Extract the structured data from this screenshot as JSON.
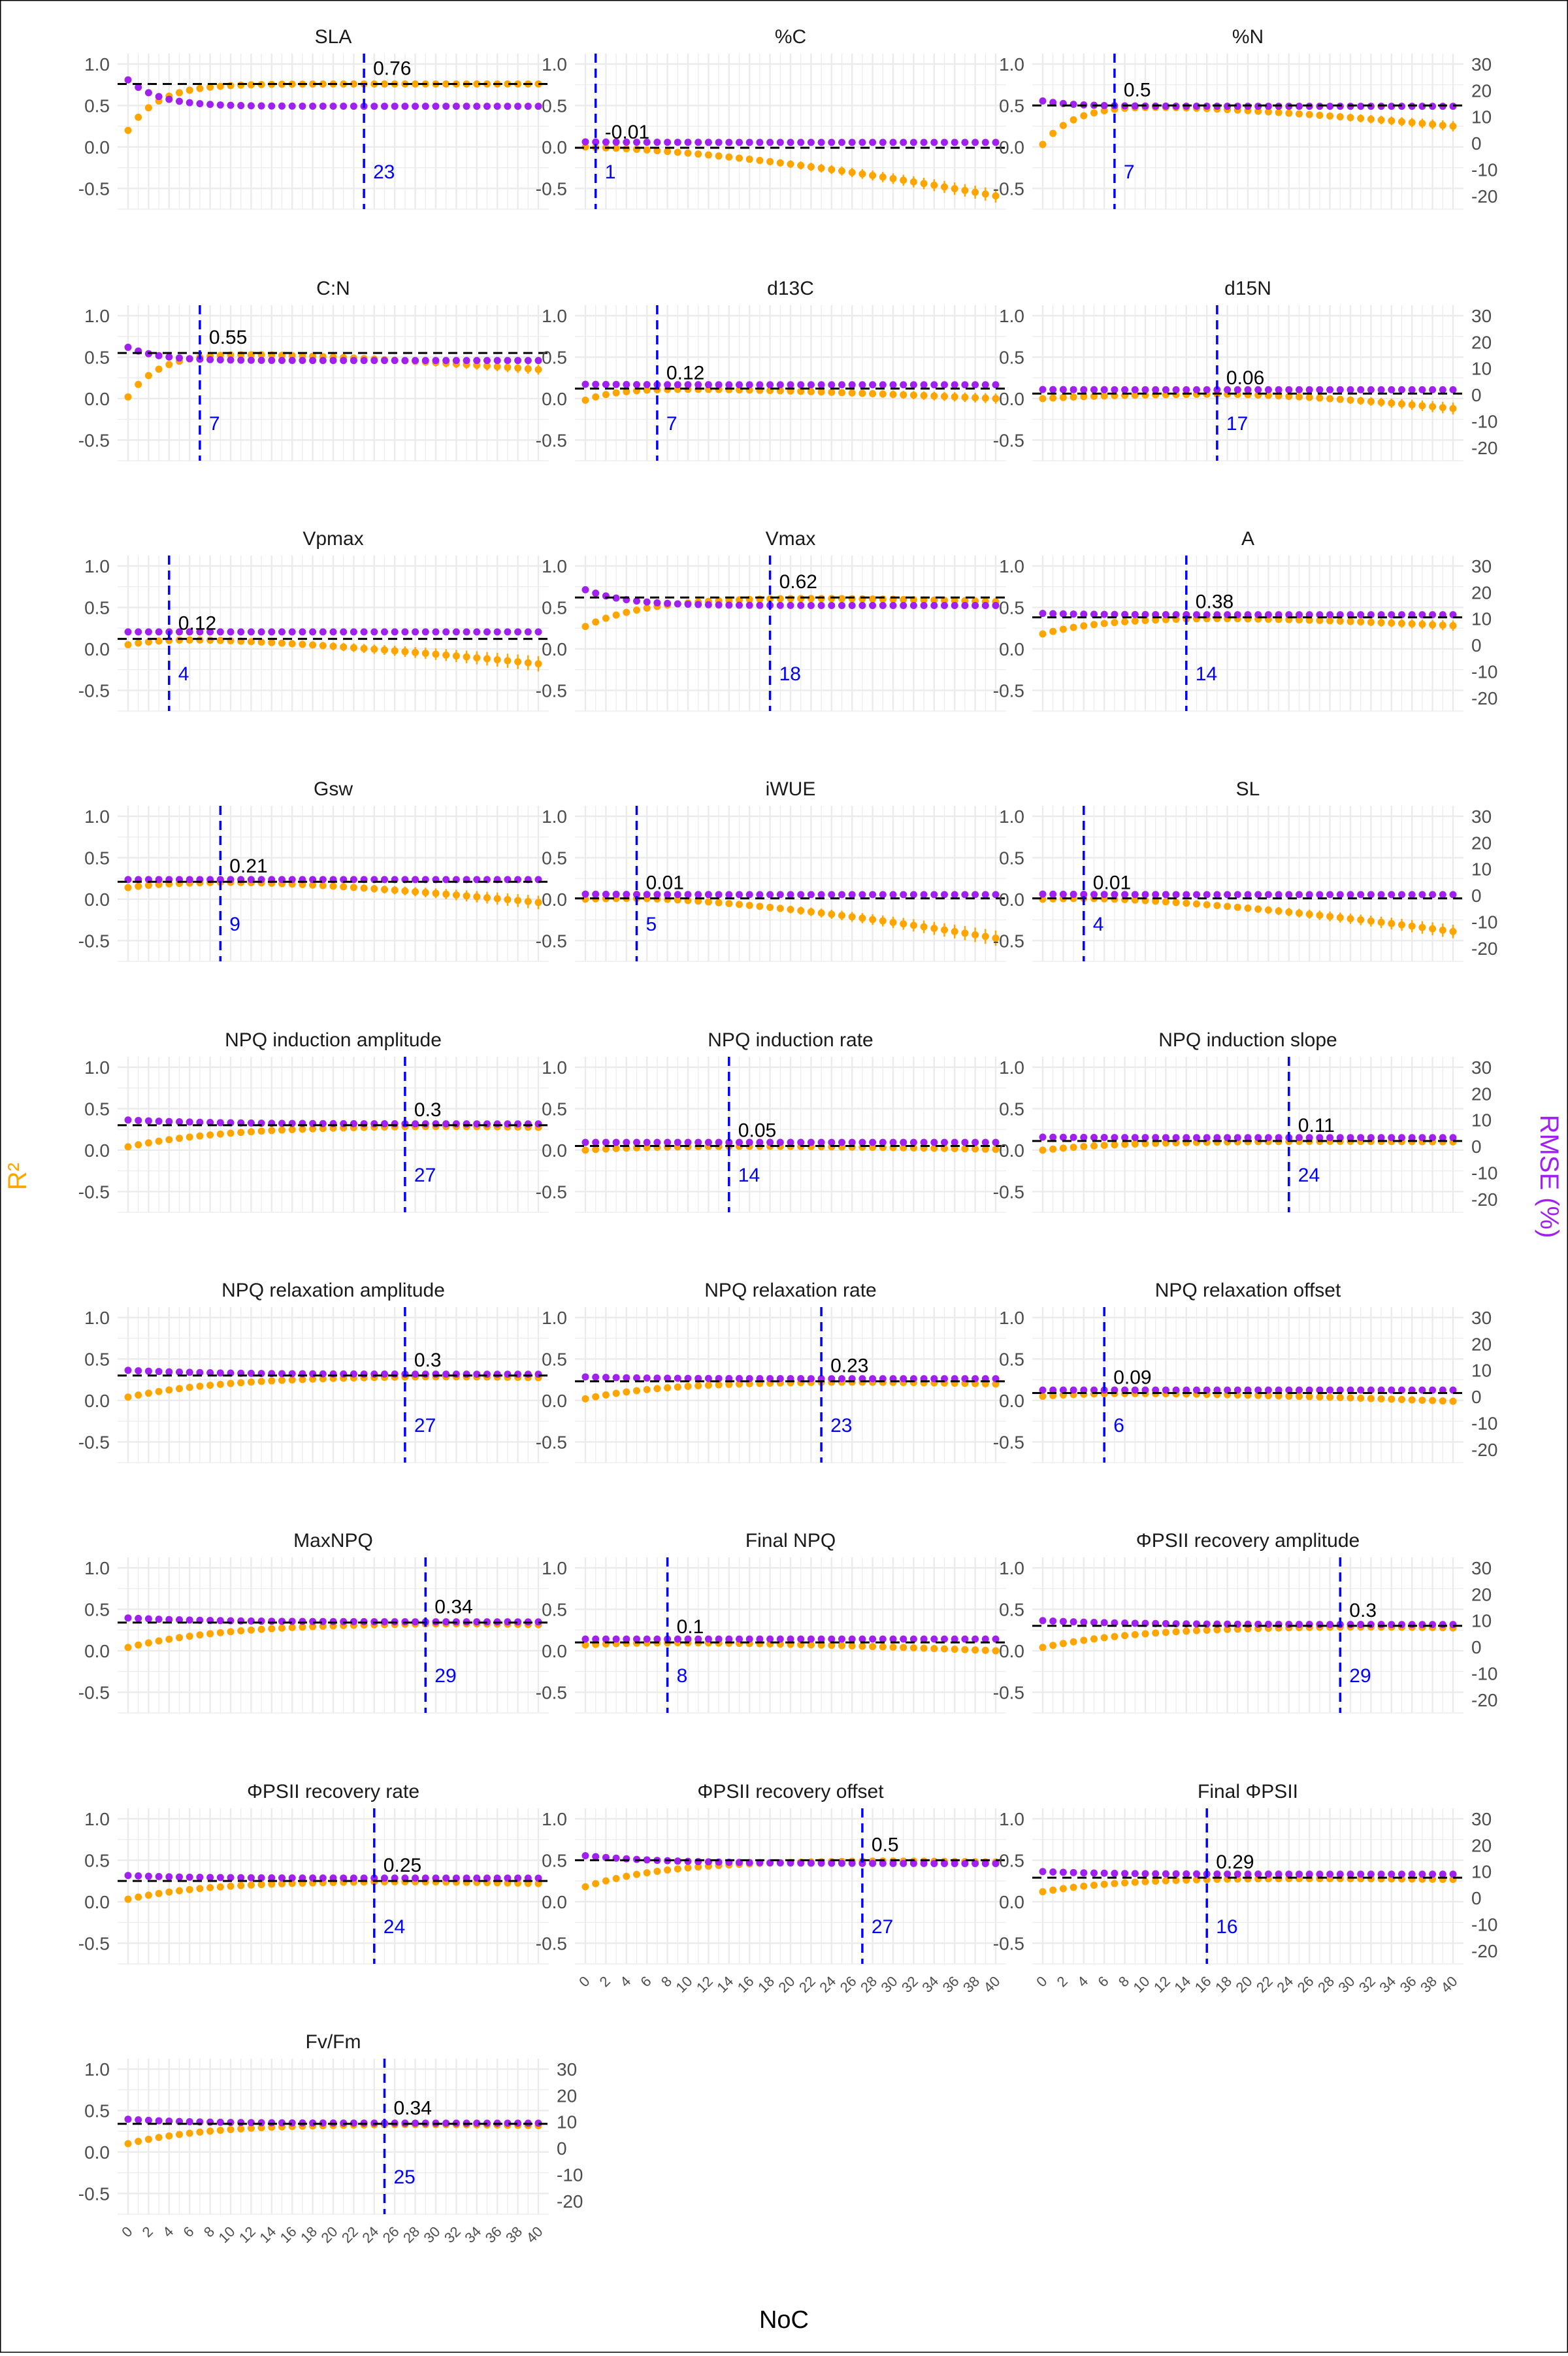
{
  "figure": {
    "xlabel": "NoC",
    "ylabel_left": "R²",
    "ylabel_right": "RMSE (%)",
    "colors": {
      "r2": "#FFA500",
      "rmse": "#A020F0",
      "vline": "#0000FF",
      "hline": "#000000",
      "grid": "#EBEBEB",
      "text": "#1A1A1A",
      "axis_text": "#4D4D4D"
    }
  },
  "chart_data": [
    {
      "type": "scatter",
      "title": "SLA",
      "best_r2": 0.76,
      "best_noc": 23,
      "r2_start": 0.2,
      "r2_end": 0.76,
      "r2_rise": 3,
      "r2_drop": 0.0,
      "r2_err_max": 0.01,
      "rmse_start": 24,
      "rmse_end": 14,
      "rmse_curve": 3
    },
    {
      "type": "scatter",
      "title": "%C",
      "best_r2": -0.01,
      "best_noc": 1,
      "r2_start": 0.0,
      "r2_end": -0.01,
      "r2_rise": 1,
      "r2_drop": 0.58,
      "r2_err_max": 0.07,
      "rmse_start": 0.5,
      "rmse_end": 0.3,
      "rmse_curve": 5
    },
    {
      "type": "scatter",
      "title": "%N",
      "best_r2": 0.5,
      "best_noc": 7,
      "r2_start": 0.03,
      "r2_end": 0.5,
      "r2_rise": 3,
      "r2_drop": 0.25,
      "r2_err_max": 0.05,
      "rmse_start": 16,
      "rmse_end": 14,
      "rmse_curve": 3
    },
    {
      "type": "scatter",
      "title": "C:N",
      "best_r2": 0.55,
      "best_noc": 7,
      "r2_start": 0.02,
      "r2_end": 0.55,
      "r2_rise": 3,
      "r2_drop": 0.2,
      "r2_err_max": 0.05,
      "rmse_start": 18,
      "rmse_end": 13,
      "rmse_curve": 3
    },
    {
      "type": "scatter",
      "title": "d13C",
      "best_r2": 0.12,
      "best_noc": 7,
      "r2_start": -0.02,
      "r2_end": 0.12,
      "r2_rise": 3,
      "r2_drop": 0.12,
      "r2_err_max": 0.05,
      "rmse_start": 4,
      "rmse_end": 3.8,
      "rmse_curve": 5
    },
    {
      "type": "scatter",
      "title": "d15N",
      "best_r2": 0.06,
      "best_noc": 17,
      "r2_start": 0.0,
      "r2_end": 0.06,
      "r2_rise": 8,
      "r2_drop": 0.18,
      "r2_err_max": 0.06,
      "rmse_start": 2,
      "rmse_end": 1.9,
      "rmse_curve": 5
    },
    {
      "type": "scatter",
      "title": "Vpmax",
      "best_r2": 0.12,
      "best_noc": 4,
      "r2_start": 0.05,
      "r2_end": 0.12,
      "r2_rise": 3,
      "r2_drop": 0.3,
      "r2_err_max": 0.08,
      "rmse_start": 5,
      "rmse_end": 5,
      "rmse_curve": 5
    },
    {
      "type": "scatter",
      "title": "Vmax",
      "best_r2": 0.62,
      "best_noc": 18,
      "r2_start": 0.27,
      "r2_end": 0.62,
      "r2_rise": 6,
      "r2_drop": 0.05,
      "r2_err_max": 0.04,
      "rmse_start": 21,
      "rmse_end": 15,
      "rmse_curve": 4
    },
    {
      "type": "scatter",
      "title": "A",
      "best_r2": 0.38,
      "best_noc": 14,
      "r2_start": 0.18,
      "r2_end": 0.38,
      "r2_rise": 6,
      "r2_drop": 0.1,
      "r2_err_max": 0.05,
      "rmse_start": 12,
      "rmse_end": 11.5,
      "rmse_curve": 5
    },
    {
      "type": "scatter",
      "title": "Gsw",
      "best_r2": 0.21,
      "best_noc": 9,
      "r2_start": 0.14,
      "r2_end": 0.21,
      "r2_rise": 4,
      "r2_drop": 0.25,
      "r2_err_max": 0.07,
      "rmse_start": 6,
      "rmse_end": 6,
      "rmse_curve": 5
    },
    {
      "type": "scatter",
      "title": "iWUE",
      "best_r2": 0.01,
      "best_noc": 5,
      "r2_start": 0.0,
      "r2_end": 0.01,
      "r2_rise": 2,
      "r2_drop": 0.48,
      "r2_err_max": 0.08,
      "rmse_start": 0.5,
      "rmse_end": 0.3,
      "rmse_curve": 5
    },
    {
      "type": "scatter",
      "title": "SL",
      "best_r2": 0.01,
      "best_noc": 4,
      "r2_start": 0.0,
      "r2_end": 0.01,
      "r2_rise": 2,
      "r2_drop": 0.4,
      "r2_err_max": 0.07,
      "rmse_start": 0.5,
      "rmse_end": 0.3,
      "rmse_curve": 5
    },
    {
      "type": "scatter",
      "title": "NPQ induction amplitude",
      "best_r2": 0.3,
      "best_noc": 27,
      "r2_start": 0.04,
      "r2_end": 0.3,
      "r2_rise": 10,
      "r2_drop": 0.02,
      "r2_err_max": 0.02,
      "rmse_start": 10,
      "rmse_end": 8.5,
      "rmse_curve": 8
    },
    {
      "type": "scatter",
      "title": "NPQ induction rate",
      "best_r2": 0.05,
      "best_noc": 14,
      "r2_start": 0.0,
      "r2_end": 0.05,
      "r2_rise": 6,
      "r2_drop": 0.04,
      "r2_err_max": 0.02,
      "rmse_start": 1.5,
      "rmse_end": 1.5,
      "rmse_curve": 5
    },
    {
      "type": "scatter",
      "title": "NPQ induction slope",
      "best_r2": 0.11,
      "best_noc": 24,
      "r2_start": 0.0,
      "r2_end": 0.11,
      "r2_rise": 8,
      "r2_drop": 0.01,
      "r2_err_max": 0.02,
      "rmse_start": 3.5,
      "rmse_end": 3.3,
      "rmse_curve": 5
    },
    {
      "type": "scatter",
      "title": "NPQ relaxation amplitude",
      "best_r2": 0.3,
      "best_noc": 27,
      "r2_start": 0.04,
      "r2_end": 0.3,
      "r2_rise": 10,
      "r2_drop": 0.02,
      "r2_err_max": 0.02,
      "rmse_start": 10,
      "rmse_end": 8.5,
      "rmse_curve": 8
    },
    {
      "type": "scatter",
      "title": "NPQ relaxation rate",
      "best_r2": 0.23,
      "best_noc": 23,
      "r2_start": 0.02,
      "r2_end": 0.23,
      "r2_rise": 8,
      "r2_drop": 0.03,
      "r2_err_max": 0.02,
      "rmse_start": 7.5,
      "rmse_end": 6.8,
      "rmse_curve": 6
    },
    {
      "type": "scatter",
      "title": "NPQ relaxation offset",
      "best_r2": 0.09,
      "best_noc": 6,
      "r2_start": 0.05,
      "r2_end": 0.09,
      "r2_rise": 4,
      "r2_drop": 0.1,
      "r2_err_max": 0.03,
      "rmse_start": 2.5,
      "rmse_end": 2.5,
      "rmse_curve": 5
    },
    {
      "type": "scatter",
      "title": "MaxNPQ",
      "best_r2": 0.34,
      "best_noc": 29,
      "r2_start": 0.04,
      "r2_end": 0.34,
      "r2_rise": 10,
      "r2_drop": 0.02,
      "r2_err_max": 0.02,
      "rmse_start": 11,
      "rmse_end": 9.5,
      "rmse_curve": 8
    },
    {
      "type": "scatter",
      "title": "Final NPQ",
      "best_r2": 0.1,
      "best_noc": 8,
      "r2_start": 0.07,
      "r2_end": 0.1,
      "r2_rise": 4,
      "r2_drop": 0.1,
      "r2_err_max": 0.03,
      "rmse_start": 3,
      "rmse_end": 3,
      "rmse_curve": 5
    },
    {
      "type": "scatter",
      "title": "ΦPSII recovery amplitude",
      "best_r2": 0.3,
      "best_noc": 29,
      "r2_start": 0.04,
      "r2_end": 0.3,
      "r2_rise": 10,
      "r2_drop": 0.02,
      "r2_err_max": 0.02,
      "rmse_start": 10,
      "rmse_end": 8.5,
      "rmse_curve": 8
    },
    {
      "type": "scatter",
      "title": "ΦPSII recovery rate",
      "best_r2": 0.25,
      "best_noc": 24,
      "r2_start": 0.03,
      "r2_end": 0.25,
      "r2_rise": 8,
      "r2_drop": 0.03,
      "r2_err_max": 0.03,
      "rmse_start": 8.5,
      "rmse_end": 7.5,
      "rmse_curve": 6
    },
    {
      "type": "scatter",
      "title": "ΦPSII recovery offset",
      "best_r2": 0.5,
      "best_noc": 27,
      "r2_start": 0.18,
      "r2_end": 0.5,
      "r2_rise": 8,
      "r2_drop": 0.02,
      "r2_err_max": 0.03,
      "rmse_start": 16,
      "rmse_end": 13,
      "rmse_curve": 8
    },
    {
      "type": "scatter",
      "title": "Final ΦPSII",
      "best_r2": 0.29,
      "best_noc": 16,
      "r2_start": 0.12,
      "r2_end": 0.29,
      "r2_rise": 8,
      "r2_drop": 0.02,
      "r2_err_max": 0.03,
      "rmse_start": 10,
      "rmse_end": 9,
      "rmse_curve": 6
    },
    {
      "type": "scatter",
      "title": "Fv/Fm",
      "best_r2": 0.34,
      "best_noc": 25,
      "r2_start": 0.1,
      "r2_end": 0.34,
      "r2_rise": 8,
      "r2_drop": 0.02,
      "r2_err_max": 0.02,
      "rmse_start": 11,
      "rmse_end": 9.5,
      "rmse_curve": 6
    }
  ],
  "axes": {
    "x_range": [
      0,
      40
    ],
    "x_ticks": [
      "0",
      "2",
      "4",
      "6",
      "8",
      "10",
      "12",
      "14",
      "16",
      "18",
      "20",
      "22",
      "24",
      "26",
      "28",
      "30",
      "32",
      "34",
      "36",
      "38",
      "40"
    ],
    "y_left_range": [
      -0.75,
      1.0
    ],
    "y_left_ticks": [
      "1.0",
      "0.5",
      "0.0",
      "-0.5"
    ],
    "y_right_range": [
      -25,
      30
    ],
    "y_right_ticks": [
      "30",
      "20",
      "10",
      "0",
      "-10",
      "-20"
    ]
  }
}
